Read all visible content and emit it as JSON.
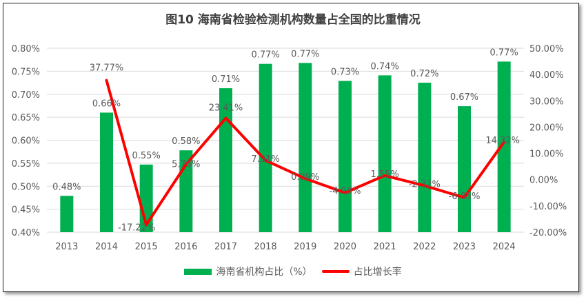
{
  "chart_data": {
    "type": "bar+line",
    "title": "图10  海南省检验检测机构数量占全国的比重情况",
    "categories": [
      "2013",
      "2014",
      "2015",
      "2016",
      "2017",
      "2018",
      "2019",
      "2020",
      "2021",
      "2022",
      "2023",
      "2024"
    ],
    "series": [
      {
        "name": "海南省机构占比（%）",
        "type": "bar",
        "axis": "left",
        "color": "#00B050",
        "values": [
          0.479,
          0.66,
          0.547,
          0.578,
          0.713,
          0.766,
          0.768,
          0.729,
          0.741,
          0.725,
          0.674,
          0.771
        ],
        "labels": [
          "0.48%",
          "0.66%",
          "0.55%",
          "0.58%",
          "0.71%",
          "0.77%",
          "0.77%",
          "0.73%",
          "0.74%",
          "0.72%",
          "0.67%",
          "0.77%"
        ]
      },
      {
        "name": "占比增长率",
        "type": "line",
        "axis": "right",
        "color": "#FF0000",
        "values": [
          null,
          37.77,
          -17.22,
          5.76,
          23.41,
          7.31,
          0.39,
          -4.98,
          1.55,
          -2.32,
          -6.85,
          14.32
        ],
        "labels": [
          "",
          "37.77%",
          "-17.22%",
          "5.76%",
          "23.41%",
          "7.31%",
          "0.39%",
          "-4.98%",
          "1.55%",
          "-2.32%",
          "-6.85%",
          "14.32%"
        ]
      }
    ],
    "left_axis": {
      "ylim": [
        0.4,
        0.8
      ],
      "ticks": [
        "0.40%",
        "0.45%",
        "0.50%",
        "0.55%",
        "0.60%",
        "0.65%",
        "0.70%",
        "0.75%",
        "0.80%"
      ]
    },
    "right_axis": {
      "ylim": [
        -20,
        50
      ],
      "ticks": [
        "-20.00%",
        "-10.00%",
        "0.00%",
        "10.00%",
        "20.00%",
        "30.00%",
        "40.00%",
        "50.00%"
      ]
    },
    "grid": true,
    "legend_position": "bottom"
  }
}
